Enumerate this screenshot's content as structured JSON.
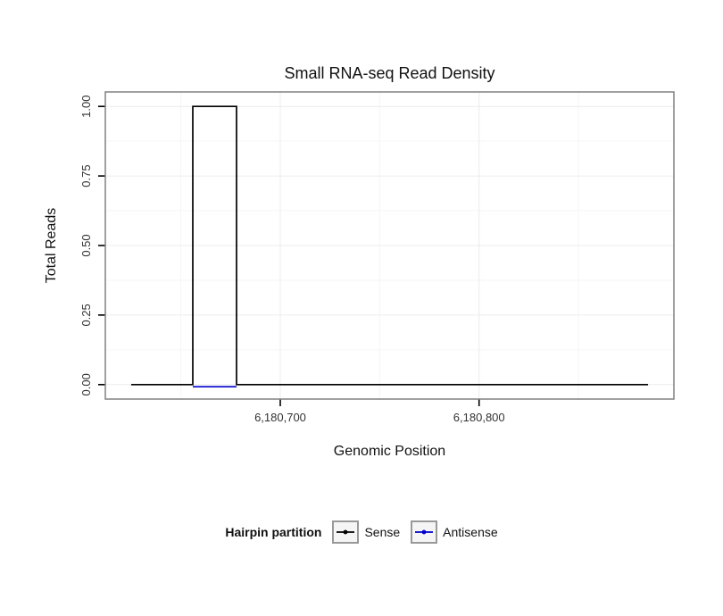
{
  "title": "Small RNA-seq Read Density",
  "chart_data": {
    "type": "area",
    "title": "Small RNA-seq Read Density",
    "xlabel": "Genomic Position",
    "ylabel": "Total Reads",
    "xlim": [
      6180612,
      6180898
    ],
    "ylim": [
      -0.052,
      1.052
    ],
    "x_ticks": [
      {
        "value": 6180700,
        "label": "6,180,700"
      },
      {
        "value": 6180800,
        "label": "6,180,800"
      }
    ],
    "x_minor_ticks": [
      6180650,
      6180750,
      6180850
    ],
    "y_ticks": [
      {
        "value": 0.0,
        "label": "0.00"
      },
      {
        "value": 0.25,
        "label": "0.25"
      },
      {
        "value": 0.5,
        "label": "0.50"
      },
      {
        "value": 0.75,
        "label": "0.75"
      },
      {
        "value": 1.0,
        "label": "1.00"
      }
    ],
    "y_minor_ticks": [
      0.125,
      0.375,
      0.625,
      0.875
    ],
    "grid": true,
    "legend": {
      "title": "Hairpin partition",
      "position": "bottom"
    },
    "series": [
      {
        "name": "Sense",
        "color": "#000000",
        "type": "step",
        "segments": [
          {
            "x0": 6180625,
            "x1": 6180656,
            "y": 0
          },
          {
            "x0": 6180656,
            "x1": 6180678,
            "y": 1
          },
          {
            "x0": 6180678,
            "x1": 6180885,
            "y": 0
          }
        ]
      },
      {
        "name": "Antisense",
        "color": "#0000CD",
        "type": "step",
        "segments": [
          {
            "x0": 6180656,
            "x1": 6180678,
            "y": 0
          }
        ]
      }
    ],
    "colors": {
      "panel_border": "#808080",
      "grid_major": "#ececec",
      "grid_minor": "#f6f6f6",
      "tick_label": "#333333",
      "legend_key_bg": "#f5f5f5",
      "legend_key_border": "#999999"
    }
  }
}
